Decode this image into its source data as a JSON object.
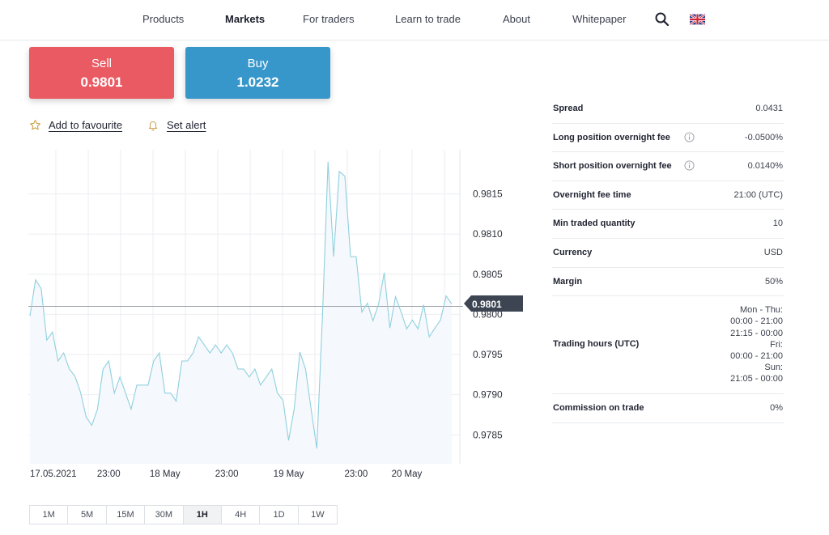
{
  "nav": {
    "items": [
      "Products",
      "Markets",
      "For traders",
      "Learn to trade",
      "About",
      "Whitepaper"
    ],
    "active_index": 1,
    "search_icon": "search-icon",
    "flag_icon": "uk-flag-icon"
  },
  "trade": {
    "sell_label": "Sell",
    "sell_price": "0.9801",
    "buy_label": "Buy",
    "buy_price": "1.0232",
    "sell_color": "#ea5a63",
    "buy_color": "#3797cb"
  },
  "actions": {
    "favourite_label": "Add to favourite",
    "alert_label": "Set alert"
  },
  "chart_data": {
    "type": "area",
    "title": "",
    "current_price": "0.9801",
    "current_price_value": 0.9801,
    "ylim": [
      0.97814,
      0.98205
    ],
    "y_ticks": [
      0.9785,
      0.979,
      0.9795,
      0.98,
      0.9805,
      0.981,
      0.9815
    ],
    "y_tick_labels": [
      "0.9785",
      "0.9790",
      "0.9795",
      "0.9800",
      "0.9805",
      "0.9810",
      "0.9815"
    ],
    "x_tick_labels": [
      "17.05.2021",
      "23:00",
      "18 May",
      "23:00",
      "19 May",
      "23:00",
      "20 May"
    ],
    "x_tick_index": [
      0,
      14,
      24,
      35,
      46,
      58,
      67
    ],
    "grid": true,
    "line_color": "#8fd0de",
    "series": [
      {
        "name": "Price",
        "values": [
          0.97998,
          0.98043,
          0.98032,
          0.97968,
          0.97978,
          0.97942,
          0.97952,
          0.97932,
          0.97923,
          0.97903,
          0.97872,
          0.97862,
          0.97882,
          0.97932,
          0.97942,
          0.97902,
          0.97922,
          0.97902,
          0.97882,
          0.97912,
          0.97912,
          0.97912,
          0.97942,
          0.97952,
          0.97902,
          0.97902,
          0.97892,
          0.97942,
          0.97942,
          0.97952,
          0.97972,
          0.97962,
          0.97952,
          0.97962,
          0.97952,
          0.97962,
          0.97952,
          0.97932,
          0.97932,
          0.97922,
          0.97932,
          0.97912,
          0.97922,
          0.97932,
          0.97902,
          0.97893,
          0.97843,
          0.97883,
          0.97953,
          0.97932,
          0.97882,
          0.97833,
          0.97995,
          0.9819,
          0.98072,
          0.98178,
          0.98172,
          0.98072,
          0.98072,
          0.98003,
          0.98014,
          0.97992,
          0.98013,
          0.98052,
          0.97983,
          0.98022,
          0.98003,
          0.97982,
          0.97993,
          0.97982,
          0.98012,
          0.97972,
          0.97983,
          0.97993,
          0.98023,
          0.98013
        ]
      }
    ]
  },
  "timeframes": {
    "items": [
      "1M",
      "5M",
      "15M",
      "30M",
      "1H",
      "4H",
      "1D",
      "1W"
    ],
    "active_index": 4
  },
  "info": {
    "spread": {
      "label": "Spread",
      "value": "0.0431"
    },
    "long_fee": {
      "label": "Long position overnight fee",
      "value": "-0.0500%"
    },
    "short_fee": {
      "label": "Short position overnight fee",
      "value": "0.0140%"
    },
    "fee_time": {
      "label": "Overnight fee time",
      "value": "21:00 (UTC)"
    },
    "min_qty": {
      "label": "Min traded quantity",
      "value": "10"
    },
    "currency": {
      "label": "Currency",
      "value": "USD"
    },
    "margin": {
      "label": "Margin",
      "value": "50%"
    },
    "trading_hours": {
      "label": "Trading hours (UTC)",
      "lines": [
        "Mon - Thu:",
        "00:00 - 21:00",
        "21:15 - 00:00",
        "Fri:",
        "00:00 - 21:00",
        "Sun:",
        "21:05 - 00:00"
      ]
    },
    "commission": {
      "label": "Commission on trade",
      "value": "0%"
    }
  }
}
